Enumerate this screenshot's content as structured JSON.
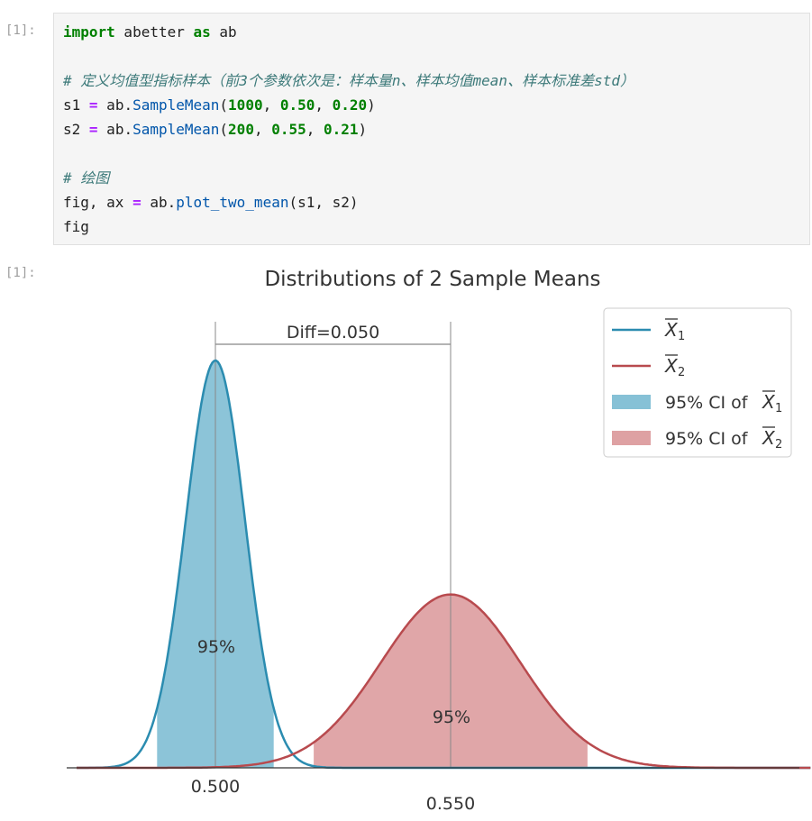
{
  "input_prompt": "[1]:",
  "output_prompt": "[1]:",
  "code": {
    "line1": {
      "kw_import": "import",
      "module": " abetter ",
      "kw_as": "as",
      "alias": " ab"
    },
    "line3_comment": "# 定义均值型指标样本（前3个参数依次是：样本量n、样本均值mean、样本标准差std）",
    "line4": {
      "var": "s1 ",
      "eq": "=",
      "obj": " ab.",
      "fn": "SampleMean",
      "open": "(",
      "a1": "1000",
      "sep1": ", ",
      "a2": "0.50",
      "sep2": ", ",
      "a3": "0.20",
      "close": ")"
    },
    "line5": {
      "var": "s2 ",
      "eq": "=",
      "obj": " ab.",
      "fn": "SampleMean",
      "open": "(",
      "a1": "200",
      "sep1": ", ",
      "a2": "0.55",
      "sep2": ", ",
      "a3": "0.21",
      "close": ")"
    },
    "line7_comment": "# 绘图",
    "line8": {
      "lhs": "fig, ax ",
      "eq": "=",
      "obj": " ab.",
      "fn": "plot_two_mean",
      "args": "(s1, s2)"
    },
    "line9": "fig"
  },
  "chart_data": {
    "type": "area",
    "title": "Distributions of 2 Sample Means",
    "xlabel": "",
    "ylabel": "",
    "x_ticks": [
      "0.500",
      "0.550"
    ],
    "diff_label": "Diff=0.050",
    "series": [
      {
        "name": "X̄₁",
        "mean": 0.5,
        "std_error": 0.00632,
        "ci": [
          0.4876,
          0.5124
        ],
        "ci_label": "95%",
        "color": "#2b8cb0",
        "fill": "#86c1d6"
      },
      {
        "name": "X̄₂",
        "mean": 0.55,
        "std_error": 0.01485,
        "ci": [
          0.5209,
          0.5791
        ],
        "ci_label": "95%",
        "color": "#b84a4e",
        "fill": "#dea1a3"
      }
    ],
    "legend": {
      "placement": "top-right",
      "entries": [
        {
          "kind": "line",
          "label_main": "X",
          "label_sub": "1",
          "color": "#2b8cb0"
        },
        {
          "kind": "line",
          "label_main": "X",
          "label_sub": "2",
          "color": "#b84a4e"
        },
        {
          "kind": "patch",
          "label_prefix": "95% CI of ",
          "label_main": "X",
          "label_sub": "1",
          "color": "#86c1d6"
        },
        {
          "kind": "patch",
          "label_prefix": "95% CI of ",
          "label_main": "X",
          "label_sub": "2",
          "color": "#dea1a3"
        }
      ]
    }
  }
}
